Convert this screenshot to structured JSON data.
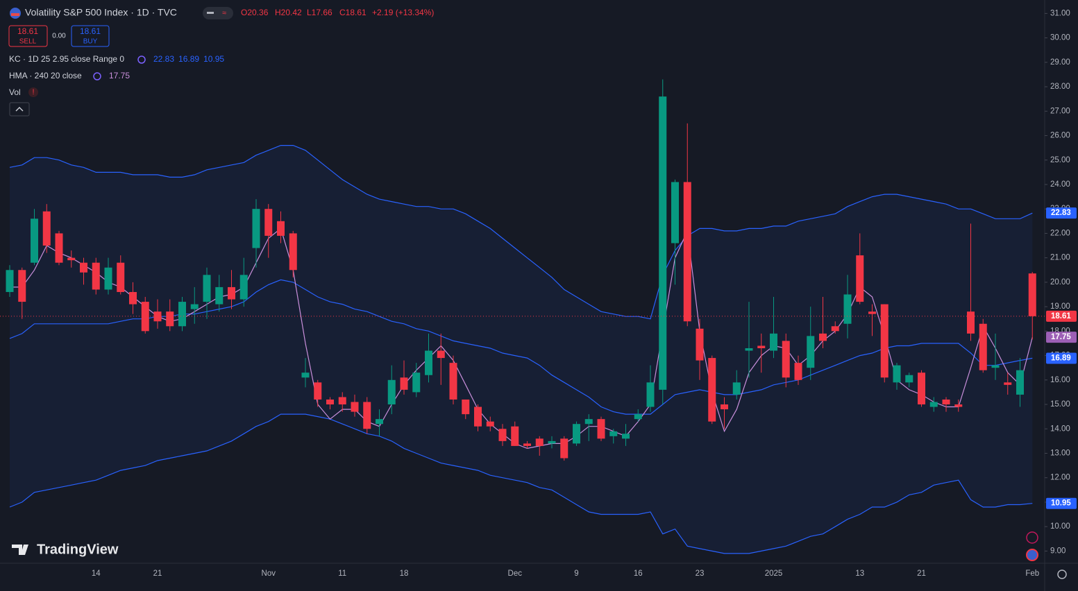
{
  "header": {
    "title": "Volatility S&P 500 Index · 1D · TVC",
    "ohlc_text": [
      "O20.36",
      "H20.42",
      "L17.66",
      "C18.61",
      "+2.19 (+13.34%)"
    ]
  },
  "trade_panel": {
    "sell_label": "SELL",
    "buy_label": "BUY",
    "spread": "0.00"
  },
  "watermark": "TradingView",
  "chart_data": {
    "type": "candlestick",
    "categories": [
      null,
      null,
      null,
      null,
      null,
      null,
      null,
      "14",
      null,
      null,
      null,
      null,
      "21",
      null,
      null,
      null,
      null,
      null,
      null,
      null,
      null,
      "Nov",
      null,
      null,
      null,
      null,
      null,
      "11",
      null,
      null,
      null,
      null,
      "18",
      null,
      null,
      null,
      null,
      null,
      null,
      null,
      null,
      "Dec",
      null,
      null,
      null,
      null,
      "9",
      null,
      null,
      null,
      null,
      "16",
      null,
      null,
      null,
      null,
      "23",
      null,
      null,
      null,
      null,
      null,
      "2025",
      null,
      null,
      null,
      null,
      null,
      null,
      "13",
      null,
      null,
      null,
      null,
      "21",
      null,
      null,
      null,
      null,
      null,
      null,
      null,
      null,
      "Feb"
    ],
    "open": [
      19.6,
      20.5,
      20.8,
      22.9,
      22.0,
      21.0,
      20.8,
      20.8,
      19.7,
      20.8,
      19.6,
      19.2,
      18.8,
      18.8,
      18.2,
      18.9,
      19.2,
      19.1,
      19.8,
      19.3,
      21.4,
      23.0,
      22.5,
      22.0,
      16.1,
      15.9,
      15.2,
      15.3,
      15.1,
      15.1,
      14.2,
      15.0,
      16.1,
      15.5,
      16.2,
      17.2,
      16.7,
      15.2,
      14.9,
      14.3,
      14.0,
      14.1,
      13.4,
      13.6,
      13.4,
      13.6,
      13.4,
      14.2,
      14.4,
      13.7,
      13.6,
      14.4,
      14.9,
      15.6,
      21.6,
      24.1,
      18.1,
      16.9,
      15.0,
      15.4,
      17.2,
      17.4,
      17.2,
      17.6,
      16.7,
      16.5,
      17.9,
      18.2,
      18.3,
      21.1,
      18.8,
      19.1,
      15.9,
      15.9,
      16.3,
      14.9,
      15.2,
      15.0,
      18.8,
      18.3,
      16.5,
      15.9,
      15.4,
      20.36
    ],
    "high": [
      20.7,
      20.6,
      23.0,
      23.2,
      22.1,
      21.3,
      21.0,
      21.0,
      21.0,
      21.1,
      20.0,
      19.4,
      19.3,
      19.3,
      19.4,
      19.8,
      20.6,
      20.3,
      20.5,
      21.0,
      23.4,
      23.2,
      22.9,
      22.1,
      16.9,
      16.0,
      15.3,
      15.5,
      15.4,
      15.3,
      14.8,
      16.6,
      16.8,
      16.7,
      17.9,
      17.9,
      17.0,
      15.2,
      15.0,
      14.5,
      14.2,
      14.3,
      13.5,
      13.7,
      13.7,
      13.7,
      14.3,
      14.6,
      14.5,
      14.0,
      14.2,
      14.8,
      16.6,
      28.3,
      24.2,
      26.5,
      18.5,
      17.0,
      15.3,
      16.4,
      19.2,
      17.9,
      19.4,
      17.9,
      17.0,
      19.0,
      19.4,
      18.4,
      20.3,
      22.0,
      19.1,
      19.1,
      16.7,
      16.3,
      16.4,
      15.3,
      15.3,
      15.2,
      22.4,
      18.5,
      17.9,
      16.3,
      16.9,
      20.42
    ],
    "low": [
      19.4,
      18.5,
      20.7,
      21.2,
      20.7,
      20.6,
      19.9,
      19.5,
      19.5,
      19.5,
      18.7,
      17.9,
      18.1,
      18.0,
      18.0,
      18.3,
      18.5,
      18.8,
      18.9,
      19.0,
      20.6,
      21.0,
      21.6,
      20.2,
      15.7,
      14.9,
      14.8,
      14.7,
      14.5,
      13.8,
      13.7,
      14.6,
      15.4,
      15.3,
      15.9,
      15.8,
      15.0,
      14.4,
      13.9,
      13.9,
      13.3,
      13.3,
      13.2,
      12.9,
      13.2,
      12.7,
      13.3,
      13.5,
      13.5,
      13.4,
      13.3,
      14.3,
      14.7,
      15.0,
      19.9,
      18.2,
      16.0,
      14.2,
      14.0,
      15.2,
      16.1,
      16.3,
      16.9,
      15.7,
      15.8,
      16.0,
      17.3,
      17.9,
      17.7,
      19.1,
      17.8,
      15.9,
      15.6,
      15.7,
      14.9,
      14.7,
      14.7,
      14.7,
      17.6,
      16.3,
      16.0,
      15.4,
      14.9,
      17.66
    ],
    "close": [
      20.5,
      19.2,
      22.6,
      21.5,
      20.8,
      20.9,
      20.4,
      19.7,
      20.6,
      19.6,
      19.1,
      18.0,
      18.4,
      18.2,
      19.2,
      19.1,
      20.3,
      19.8,
      19.3,
      20.3,
      23.0,
      21.9,
      21.9,
      20.5,
      16.3,
      15.2,
      15.0,
      15.0,
      14.7,
      14.0,
      14.4,
      16.0,
      15.6,
      16.3,
      17.2,
      16.9,
      15.2,
      14.6,
      14.1,
      14.1,
      13.5,
      13.3,
      13.3,
      13.3,
      13.5,
      12.8,
      14.2,
      14.4,
      13.6,
      13.9,
      13.8,
      14.6,
      15.9,
      27.6,
      24.1,
      18.4,
      16.8,
      14.3,
      14.8,
      15.9,
      17.3,
      17.3,
      17.9,
      16.1,
      16.0,
      17.8,
      17.6,
      18.0,
      19.5,
      19.2,
      18.7,
      16.1,
      16.6,
      16.2,
      15.0,
      15.1,
      15.0,
      14.9,
      17.9,
      16.4,
      16.6,
      15.8,
      16.4,
      18.61
    ],
    "up_color": "#089981",
    "down_color": "#f23645",
    "indicators": [
      {
        "label": "KC · 1D 25 2.95 close Range 0",
        "color": "#2962ff",
        "fill": "rgba(41,98,255,0.07)",
        "lines": [
          {
            "values": [
              24.7,
              24.8,
              25.1,
              25.1,
              25.0,
              24.8,
              24.7,
              24.5,
              24.5,
              24.5,
              24.4,
              24.4,
              24.4,
              24.3,
              24.3,
              24.4,
              24.6,
              24.7,
              24.8,
              24.9,
              25.2,
              25.4,
              25.6,
              25.6,
              25.4,
              25.0,
              24.6,
              24.2,
              23.9,
              23.6,
              23.4,
              23.3,
              23.2,
              23.1,
              23.1,
              23.0,
              23.0,
              22.8,
              22.5,
              22.2,
              21.8,
              21.4,
              21.0,
              20.6,
              20.2,
              19.7,
              19.4,
              19.1,
              18.8,
              18.7,
              18.6,
              18.6,
              18.5,
              20.3,
              21.3,
              21.9,
              22.2,
              22.2,
              22.1,
              22.1,
              22.2,
              22.2,
              22.3,
              22.3,
              22.5,
              22.6,
              22.7,
              22.8,
              23.1,
              23.3,
              23.5,
              23.6,
              23.6,
              23.5,
              23.4,
              23.3,
              23.2,
              23.0,
              23.0,
              22.8,
              22.6,
              22.6,
              22.6,
              22.83
            ]
          },
          {
            "values": [
              17.7,
              17.9,
              18.3,
              18.3,
              18.3,
              18.3,
              18.3,
              18.3,
              18.3,
              18.4,
              18.5,
              18.5,
              18.6,
              18.6,
              18.7,
              18.7,
              18.8,
              18.9,
              19.0,
              19.2,
              19.6,
              19.9,
              20.1,
              20.0,
              19.7,
              19.4,
              19.2,
              19.1,
              18.9,
              18.8,
              18.6,
              18.4,
              18.3,
              18.1,
              18.0,
              17.8,
              17.6,
              17.5,
              17.4,
              17.3,
              17.1,
              17.0,
              16.9,
              16.6,
              16.2,
              15.9,
              15.6,
              15.3,
              14.9,
              14.7,
              14.6,
              14.6,
              14.6,
              15.0,
              15.4,
              15.5,
              15.6,
              15.5,
              15.4,
              15.4,
              15.5,
              15.6,
              15.8,
              15.9,
              16.0,
              16.2,
              16.4,
              16.6,
              16.8,
              17.0,
              17.1,
              17.3,
              17.4,
              17.4,
              17.5,
              17.5,
              17.5,
              17.5,
              17.1,
              16.6,
              16.6,
              16.7,
              16.8,
              16.89
            ]
          },
          {
            "values": [
              10.8,
              11.0,
              11.4,
              11.5,
              11.6,
              11.7,
              11.8,
              11.9,
              12.1,
              12.3,
              12.4,
              12.5,
              12.7,
              12.8,
              12.9,
              13.0,
              13.1,
              13.3,
              13.5,
              13.8,
              14.1,
              14.3,
              14.6,
              14.6,
              14.6,
              14.5,
              14.4,
              14.2,
              14.0,
              13.8,
              13.7,
              13.5,
              13.2,
              13.0,
              12.8,
              12.6,
              12.5,
              12.4,
              12.3,
              12.1,
              12.0,
              11.9,
              11.8,
              11.6,
              11.5,
              11.2,
              10.9,
              10.6,
              10.5,
              10.5,
              10.5,
              10.5,
              10.6,
              9.7,
              9.9,
              9.2,
              9.1,
              9.0,
              8.9,
              8.9,
              8.9,
              9.0,
              9.1,
              9.2,
              9.4,
              9.6,
              9.7,
              10.0,
              10.3,
              10.5,
              10.8,
              10.8,
              11.0,
              11.3,
              11.4,
              11.7,
              11.8,
              11.9,
              11.1,
              10.8,
              10.8,
              10.9,
              10.9,
              10.95
            ]
          }
        ]
      },
      {
        "label": "HMA · 240 20 close",
        "color": "#c98fdb",
        "lines": [
          {
            "values": [
              19.8,
              19.8,
              20.5,
              21.5,
              21.2,
              21.0,
              20.7,
              20.4,
              20.0,
              19.8,
              19.4,
              19.0,
              18.6,
              18.4,
              18.5,
              18.8,
              19.1,
              19.4,
              19.5,
              19.8,
              20.8,
              21.8,
              22.2,
              20.5,
              17.5,
              15.0,
              14.4,
              14.8,
              14.8,
              14.3,
              14.1,
              15.0,
              15.8,
              16.4,
              16.9,
              17.4,
              16.8,
              15.8,
              14.8,
              14.2,
              13.8,
              13.4,
              13.2,
              13.3,
              13.4,
              13.4,
              13.7,
              14.1,
              14.1,
              13.9,
              13.7,
              14.3,
              15.0,
              18.0,
              21.0,
              22.1,
              18.0,
              15.5,
              13.9,
              14.8,
              16.3,
              17.0,
              17.4,
              17.3,
              16.6,
              17.0,
              17.6,
              18.0,
              18.7,
              19.8,
              19.4,
              17.8,
              16.0,
              15.6,
              15.4,
              15.1,
              14.9,
              14.9,
              16.5,
              18.2,
              17.3,
              16.3,
              15.8,
              17.75
            ]
          }
        ]
      }
    ],
    "volume_label": "Vol",
    "ylim": [
      8.5,
      31.55
    ],
    "yticks": [
      {
        "value": 9,
        "label": "9.00"
      },
      {
        "value": 10,
        "label": "10.00"
      },
      {
        "value": 11,
        "label": "11.00"
      },
      {
        "value": 12,
        "label": "12.00"
      },
      {
        "value": 13,
        "label": "13.00"
      },
      {
        "value": 14,
        "label": "14.00"
      },
      {
        "value": 15,
        "label": "15.00"
      },
      {
        "value": 16,
        "label": "16.00"
      },
      {
        "value": 17,
        "label": "17.00"
      },
      {
        "value": 18,
        "label": "18.00"
      },
      {
        "value": 19,
        "label": "19.00"
      },
      {
        "value": 20,
        "label": "20.00"
      },
      {
        "value": 21,
        "label": "21.00"
      },
      {
        "value": 22,
        "label": "22.00"
      },
      {
        "value": 23,
        "label": "23.00"
      },
      {
        "value": 24,
        "label": "24.00"
      },
      {
        "value": 25,
        "label": "25.00"
      },
      {
        "value": 26,
        "label": "26.00"
      },
      {
        "value": 27,
        "label": "27.00"
      },
      {
        "value": 28,
        "label": "28.00"
      },
      {
        "value": 29,
        "label": "29.00"
      },
      {
        "value": 30,
        "label": "30.00"
      },
      {
        "value": 31,
        "label": "31.00"
      }
    ]
  }
}
